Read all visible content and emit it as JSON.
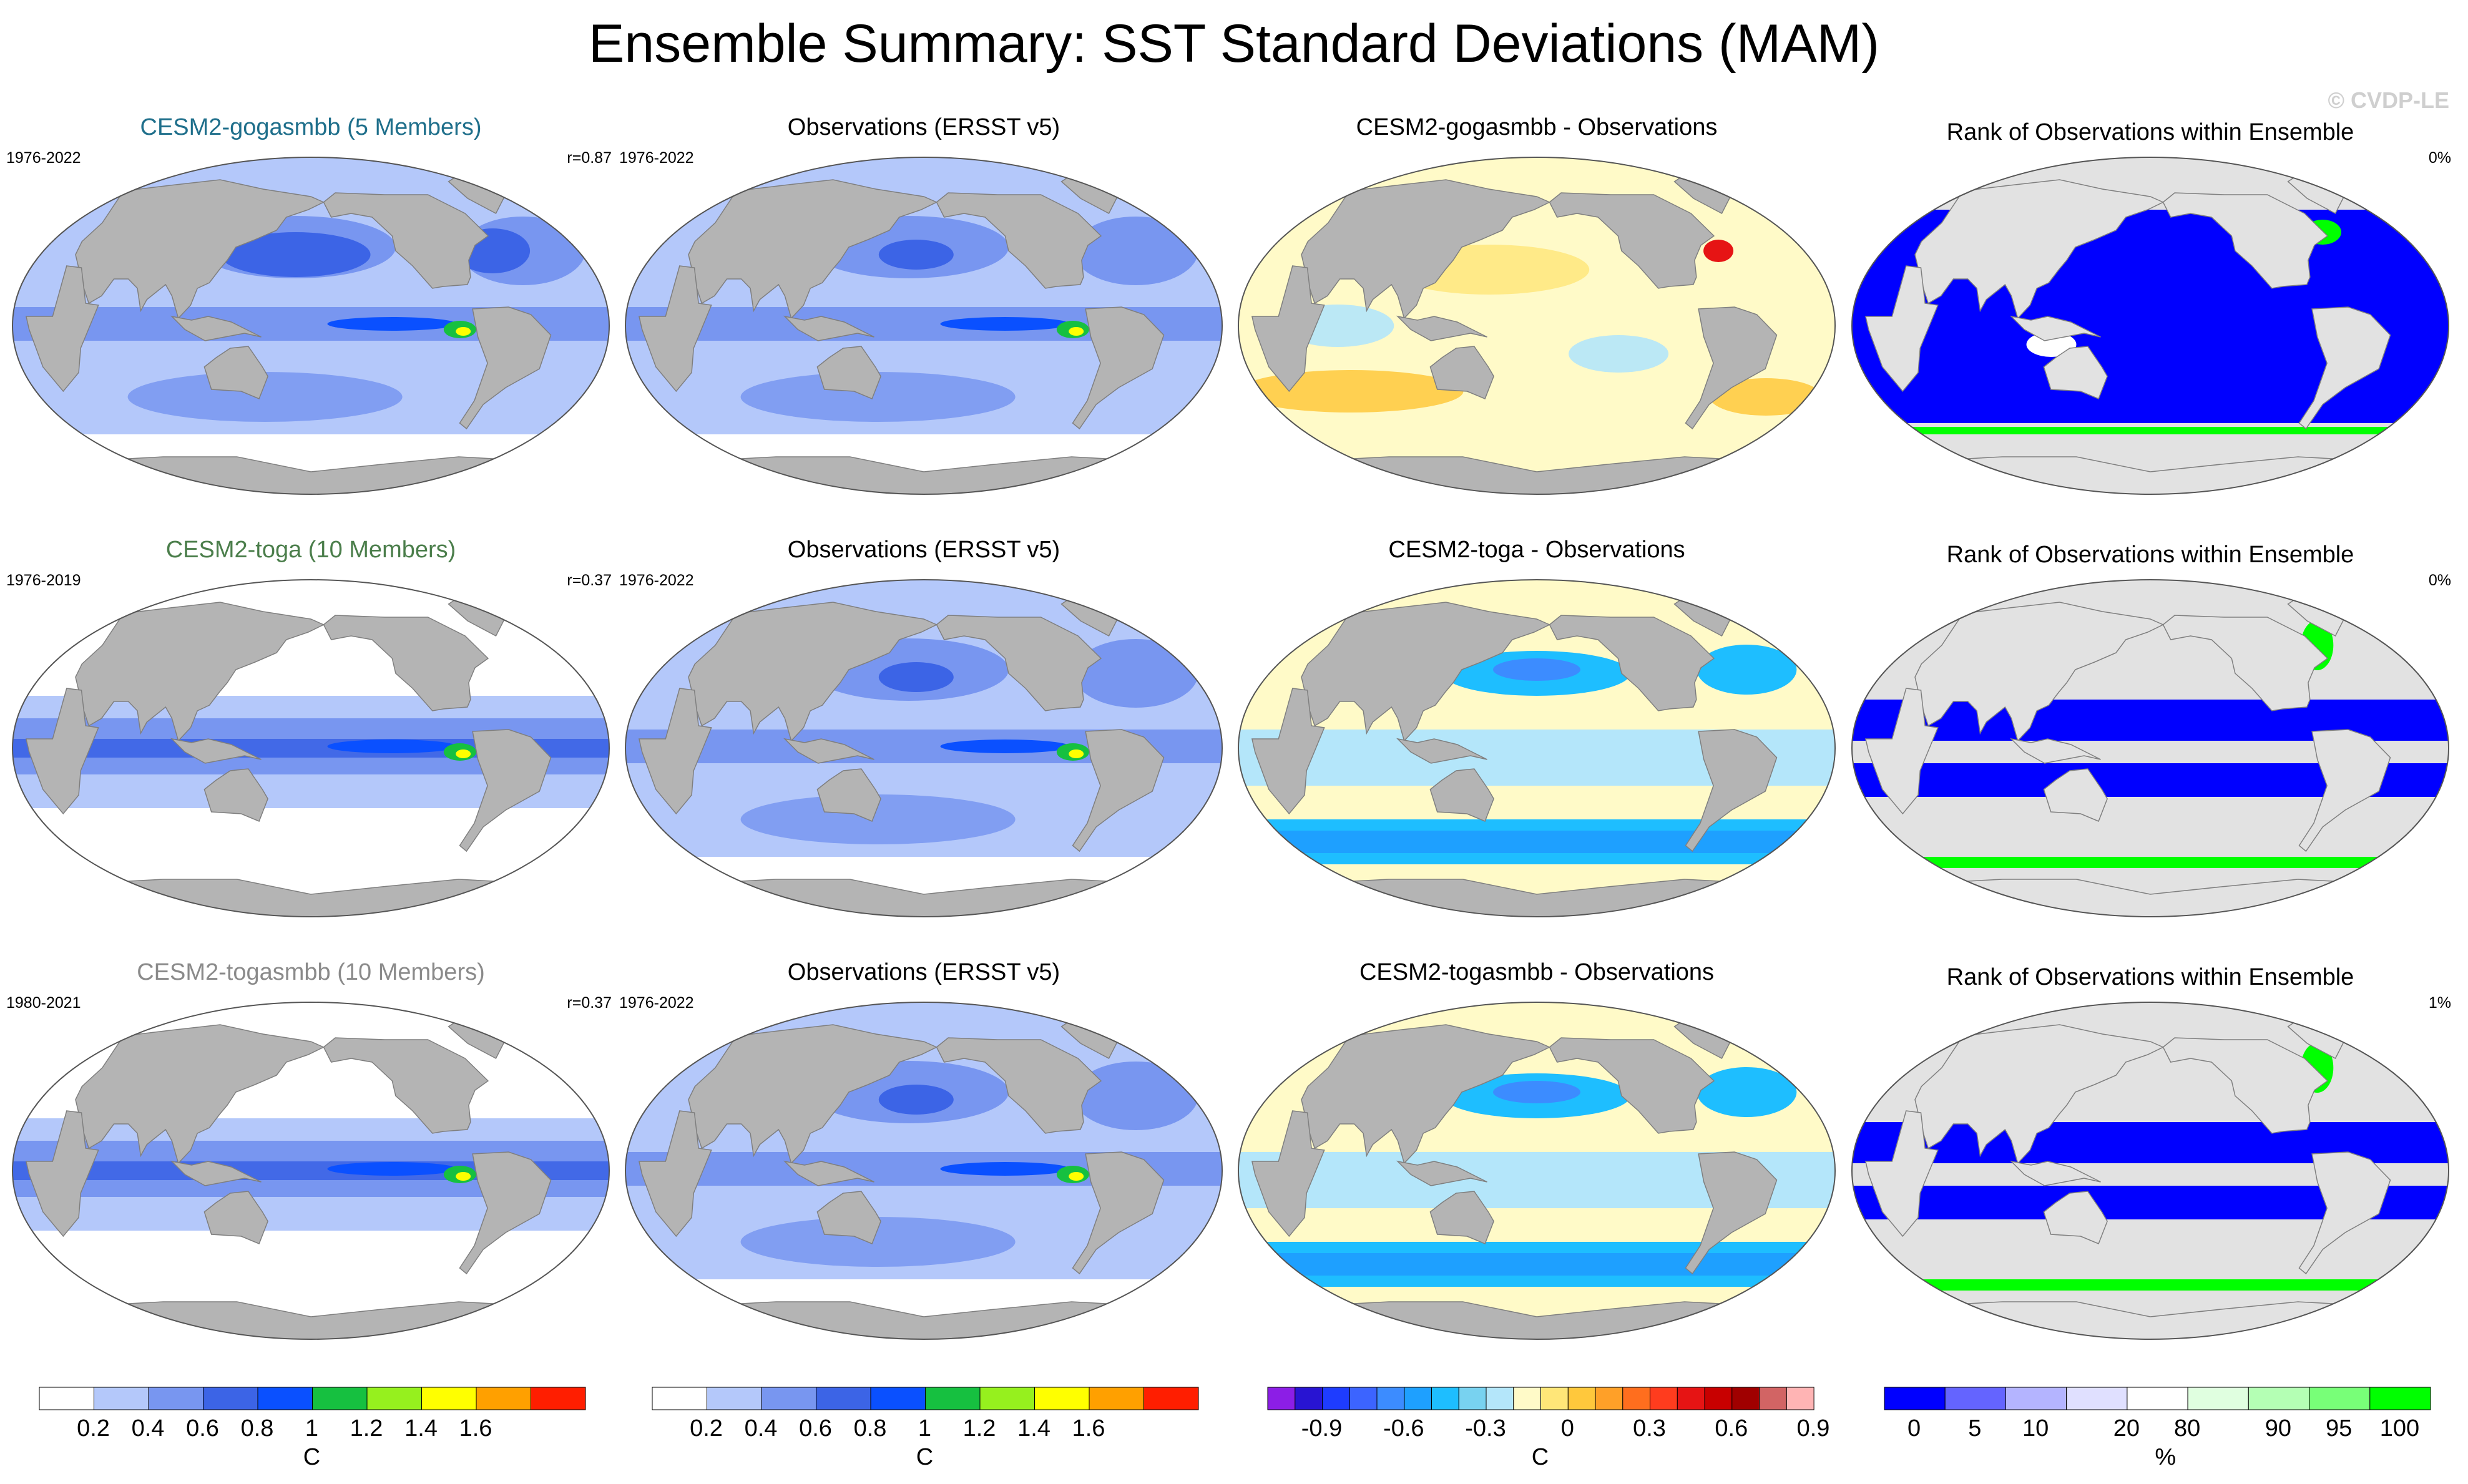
{
  "title": "Ensemble Summary: SST Standard Deviations (MAM)",
  "watermark": "© CVDP-LE",
  "colors": {
    "land": "#b4b4b4",
    "missing": "#ffffff",
    "rank_land": "#e2e2e2",
    "coast": "#7f7f7f"
  },
  "rows": [
    {
      "model": {
        "title": "CESM2-gogasmbb (5 Members)",
        "color": "#1f6f8b",
        "period": "1976-2022",
        "stat": "r=0.87"
      },
      "obs": {
        "title": "Observations (ERSST v5)",
        "period": "1976-2022"
      },
      "diff": {
        "title": "CESM2-gogasmbb - Observations"
      },
      "rank": {
        "title": "Rank of Observations within Ensemble",
        "stat": "0%"
      }
    },
    {
      "model": {
        "title": "CESM2-toga (10 Members)",
        "color": "#4b7e4b",
        "period": "1976-2019",
        "stat": "r=0.37"
      },
      "obs": {
        "title": "Observations (ERSST v5)",
        "period": "1976-2022"
      },
      "diff": {
        "title": "CESM2-toga - Observations"
      },
      "rank": {
        "title": "Rank of Observations within Ensemble",
        "stat": "0%"
      }
    },
    {
      "model": {
        "title": "CESM2-togasmbb (10 Members)",
        "color": "#8a8a8a",
        "period": "1980-2021",
        "stat": "r=0.37"
      },
      "obs": {
        "title": "Observations (ERSST v5)",
        "period": "1976-2022"
      },
      "diff": {
        "title": "CESM2-togasmbb - Observations"
      },
      "rank": {
        "title": "Rank of Observations within Ensemble",
        "stat": "1%"
      }
    }
  ],
  "colorbars": [
    {
      "unit": "C",
      "colors": [
        "#ffffff",
        "#b4c8fa",
        "#7896f0",
        "#3c64e6",
        "#0a50ff",
        "#16c040",
        "#96f01e",
        "#ffff00",
        "#ffa000",
        "#ff1e00"
      ],
      "ticks": [
        "0.2",
        "0.4",
        "0.6",
        "0.8",
        "1",
        "1.2",
        "1.4",
        "1.6"
      ]
    },
    {
      "unit": "C",
      "colors": [
        "#ffffff",
        "#b4c8fa",
        "#7896f0",
        "#3c64e6",
        "#0a50ff",
        "#16c040",
        "#96f01e",
        "#ffff00",
        "#ffa000",
        "#ff1e00"
      ],
      "ticks": [
        "0.2",
        "0.4",
        "0.6",
        "0.8",
        "1",
        "1.2",
        "1.4",
        "1.6"
      ]
    },
    {
      "unit": "C",
      "colors": [
        "#8c1ee6",
        "#2814d2",
        "#1e3cff",
        "#3c64ff",
        "#3c8cff",
        "#1ea0ff",
        "#1ebeff",
        "#78d2f0",
        "#b4e6fa",
        "#fffac8",
        "#ffe678",
        "#ffc83c",
        "#ffa028",
        "#ff6e1e",
        "#ff3c1e",
        "#e61414",
        "#c80000",
        "#a00000",
        "#d26464",
        "#ffb4b4"
      ],
      "ticks": [
        "-0.9",
        "-0.6",
        "-0.3",
        "0",
        "0.3",
        "0.6",
        "0.9"
      ]
    },
    {
      "unit": "%",
      "colors": [
        "#0000ff",
        "#6464ff",
        "#b4b4ff",
        "#e0e0ff",
        "#ffffff",
        "#e0ffe0",
        "#b4ffb4",
        "#78ff78",
        "#00ff00"
      ],
      "ticks": [
        "0",
        "5",
        "10",
        "20",
        "80",
        "90",
        "95",
        "100"
      ]
    }
  ]
}
